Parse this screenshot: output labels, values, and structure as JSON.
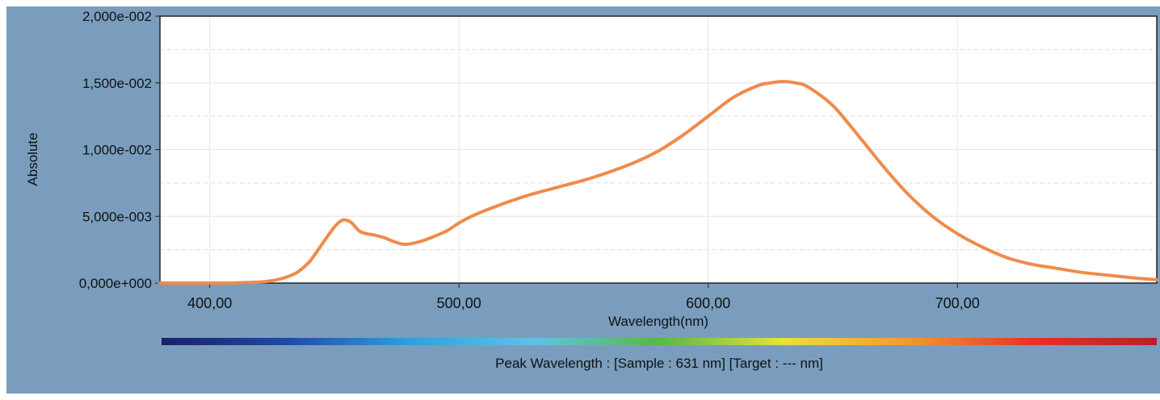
{
  "chart_data": {
    "type": "line",
    "title": "",
    "xlabel": "Wavelength(nm)",
    "ylabel": "Absolute",
    "xlim": [
      380,
      780
    ],
    "ylim": [
      0,
      0.02
    ],
    "x_ticks": [
      400,
      500,
      600,
      700
    ],
    "x_tick_labels": [
      "400,00",
      "500,00",
      "600,00",
      "700,00"
    ],
    "y_ticks": [
      0,
      0.005,
      0.01,
      0.015,
      0.02
    ],
    "y_tick_labels": [
      "0,000e+000",
      "5,000e-003",
      "1,000e-002",
      "1,500e-002",
      "2,000e-002"
    ],
    "grid": true,
    "line_color": "#f08a4b",
    "series": [
      {
        "x": [
          380,
          400,
          410,
          420,
          425,
          430,
          435,
          440,
          445,
          450,
          453,
          455,
          457,
          460,
          463,
          466,
          470,
          474,
          478,
          482,
          486,
          490,
          495,
          500,
          505,
          510,
          520,
          530,
          540,
          550,
          560,
          570,
          580,
          590,
          600,
          610,
          620,
          625,
          630,
          635,
          640,
          650,
          660,
          670,
          680,
          690,
          700,
          710,
          720,
          730,
          740,
          750,
          760,
          770,
          780
        ],
        "y": [
          0.0,
          0.0,
          2e-05,
          8e-05,
          0.00018,
          0.0004,
          0.0008,
          0.0016,
          0.0029,
          0.0042,
          0.0047,
          0.0047,
          0.0045,
          0.0039,
          0.0037,
          0.0036,
          0.0034,
          0.0031,
          0.0029,
          0.003,
          0.0032,
          0.0035,
          0.0039,
          0.0045,
          0.005,
          0.0054,
          0.0061,
          0.0067,
          0.0072,
          0.0077,
          0.0083,
          0.009,
          0.0099,
          0.0111,
          0.0125,
          0.0139,
          0.0148,
          0.015,
          0.0151,
          0.015,
          0.0147,
          0.0133,
          0.0111,
          0.0088,
          0.0067,
          0.005,
          0.0037,
          0.0027,
          0.0019,
          0.0014,
          0.0011,
          0.0008,
          0.0006,
          0.0004,
          0.00025
        ]
      }
    ]
  },
  "spectrum_bar": {
    "stops": [
      "#1c1f66",
      "#1f4aa8",
      "#2f9fe0",
      "#5fc3e8",
      "#56b848",
      "#e8e238",
      "#f39a2a",
      "#e8312a",
      "#b8202a"
    ]
  },
  "caption": "Peak Wavelength : [Sample : 631 nm] [Target : --- nm]"
}
